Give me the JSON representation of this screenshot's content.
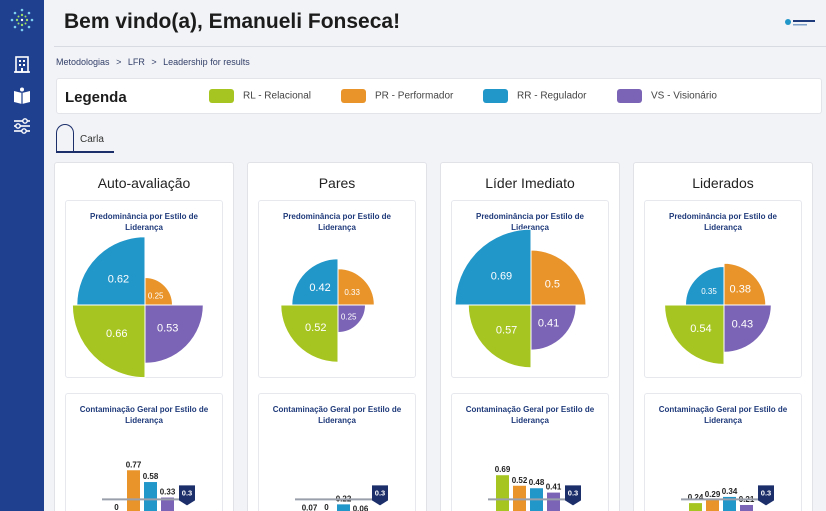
{
  "header": {
    "title": "Bem vindo(a), Emanueli Fonseca!",
    "brand_logo_icon": "brand-logo-icon"
  },
  "sidebar": {
    "logo_icon": "dots-logo-icon",
    "items": [
      {
        "icon": "building-icon"
      },
      {
        "icon": "open-book-icon"
      },
      {
        "icon": "sliders-icon"
      }
    ]
  },
  "breadcrumb": [
    "Metodologias",
    ">",
    "LFR",
    ">",
    "Leadership for results"
  ],
  "legend": {
    "title": "Legenda",
    "items": [
      {
        "label": "RL - Relacional",
        "color": "#a7c520"
      },
      {
        "label": "PR - Performador",
        "color": "#e8942b"
      },
      {
        "label": "RR - Regulador",
        "color": "#2196c9"
      },
      {
        "label": "VS - Visionário",
        "color": "#7b64b5"
      }
    ]
  },
  "tab": {
    "label": "Carla"
  },
  "cards": [
    {
      "title": "Auto-avaliação",
      "pie_title": "Predominância por Estilo de Liderança",
      "bar_title": "Contaminação Geral por Estilo de Liderança",
      "pie": {
        "RR": 0.62,
        "PR": 0.25,
        "RL": 0.66,
        "VS": 0.53
      },
      "bars": {
        "RL": 0,
        "PR": 0.77,
        "RR": 0.58,
        "VS": 0.33
      },
      "bar_labels": [
        "0",
        "0.77",
        "0.58",
        "0.33"
      ],
      "threshold": "0.3"
    },
    {
      "title": "Pares",
      "pie_title": "Predominância por Estilo de Liderança",
      "bar_title": "Contaminação Geral por Estilo de Liderança",
      "pie": {
        "RR": 0.42,
        "PR": 0.33,
        "RL": 0.52,
        "VS": 0.25
      },
      "bars": {
        "RL": 0.07,
        "PR": 0,
        "RR": 0.22,
        "VS": 0.06
      },
      "bar_labels": [
        "0.07",
        "0",
        "0.22",
        "0.06"
      ],
      "threshold": "0.3"
    },
    {
      "title": "Líder Imediato",
      "pie_title": "Predominância por Estilo de Liderança",
      "bar_title": "Contaminação Geral por Estilo de Liderança",
      "pie": {
        "RR": 0.69,
        "PR": 0.5,
        "RL": 0.57,
        "VS": 0.41
      },
      "bars": {
        "RL": 0.69,
        "PR": 0.52,
        "RR": 0.48,
        "VS": 0.41
      },
      "bar_labels": [
        "0.69",
        "0.52",
        "0.48",
        "0.41"
      ],
      "threshold": "0.3"
    },
    {
      "title": "Liderados",
      "pie_title": "Predominância por Estilo de Liderança",
      "bar_title": "Contaminação Geral por Estilo de Liderança",
      "pie": {
        "RR": 0.35,
        "PR": 0.38,
        "RL": 0.54,
        "VS": 0.43
      },
      "bars": {
        "RL": 0.24,
        "PR": 0.29,
        "RR": 0.34,
        "VS": 0.21
      },
      "bar_labels": [
        "0.24",
        "0.29",
        "0.34",
        "0.21"
      ],
      "threshold": "0.3"
    }
  ],
  "colors": {
    "sidebar": "#1f3f8f",
    "RL": "#a7c520",
    "PR": "#e8942b",
    "RR": "#2196c9",
    "VS": "#7b64b5",
    "threshold_badge": "#1c2f6b"
  }
}
